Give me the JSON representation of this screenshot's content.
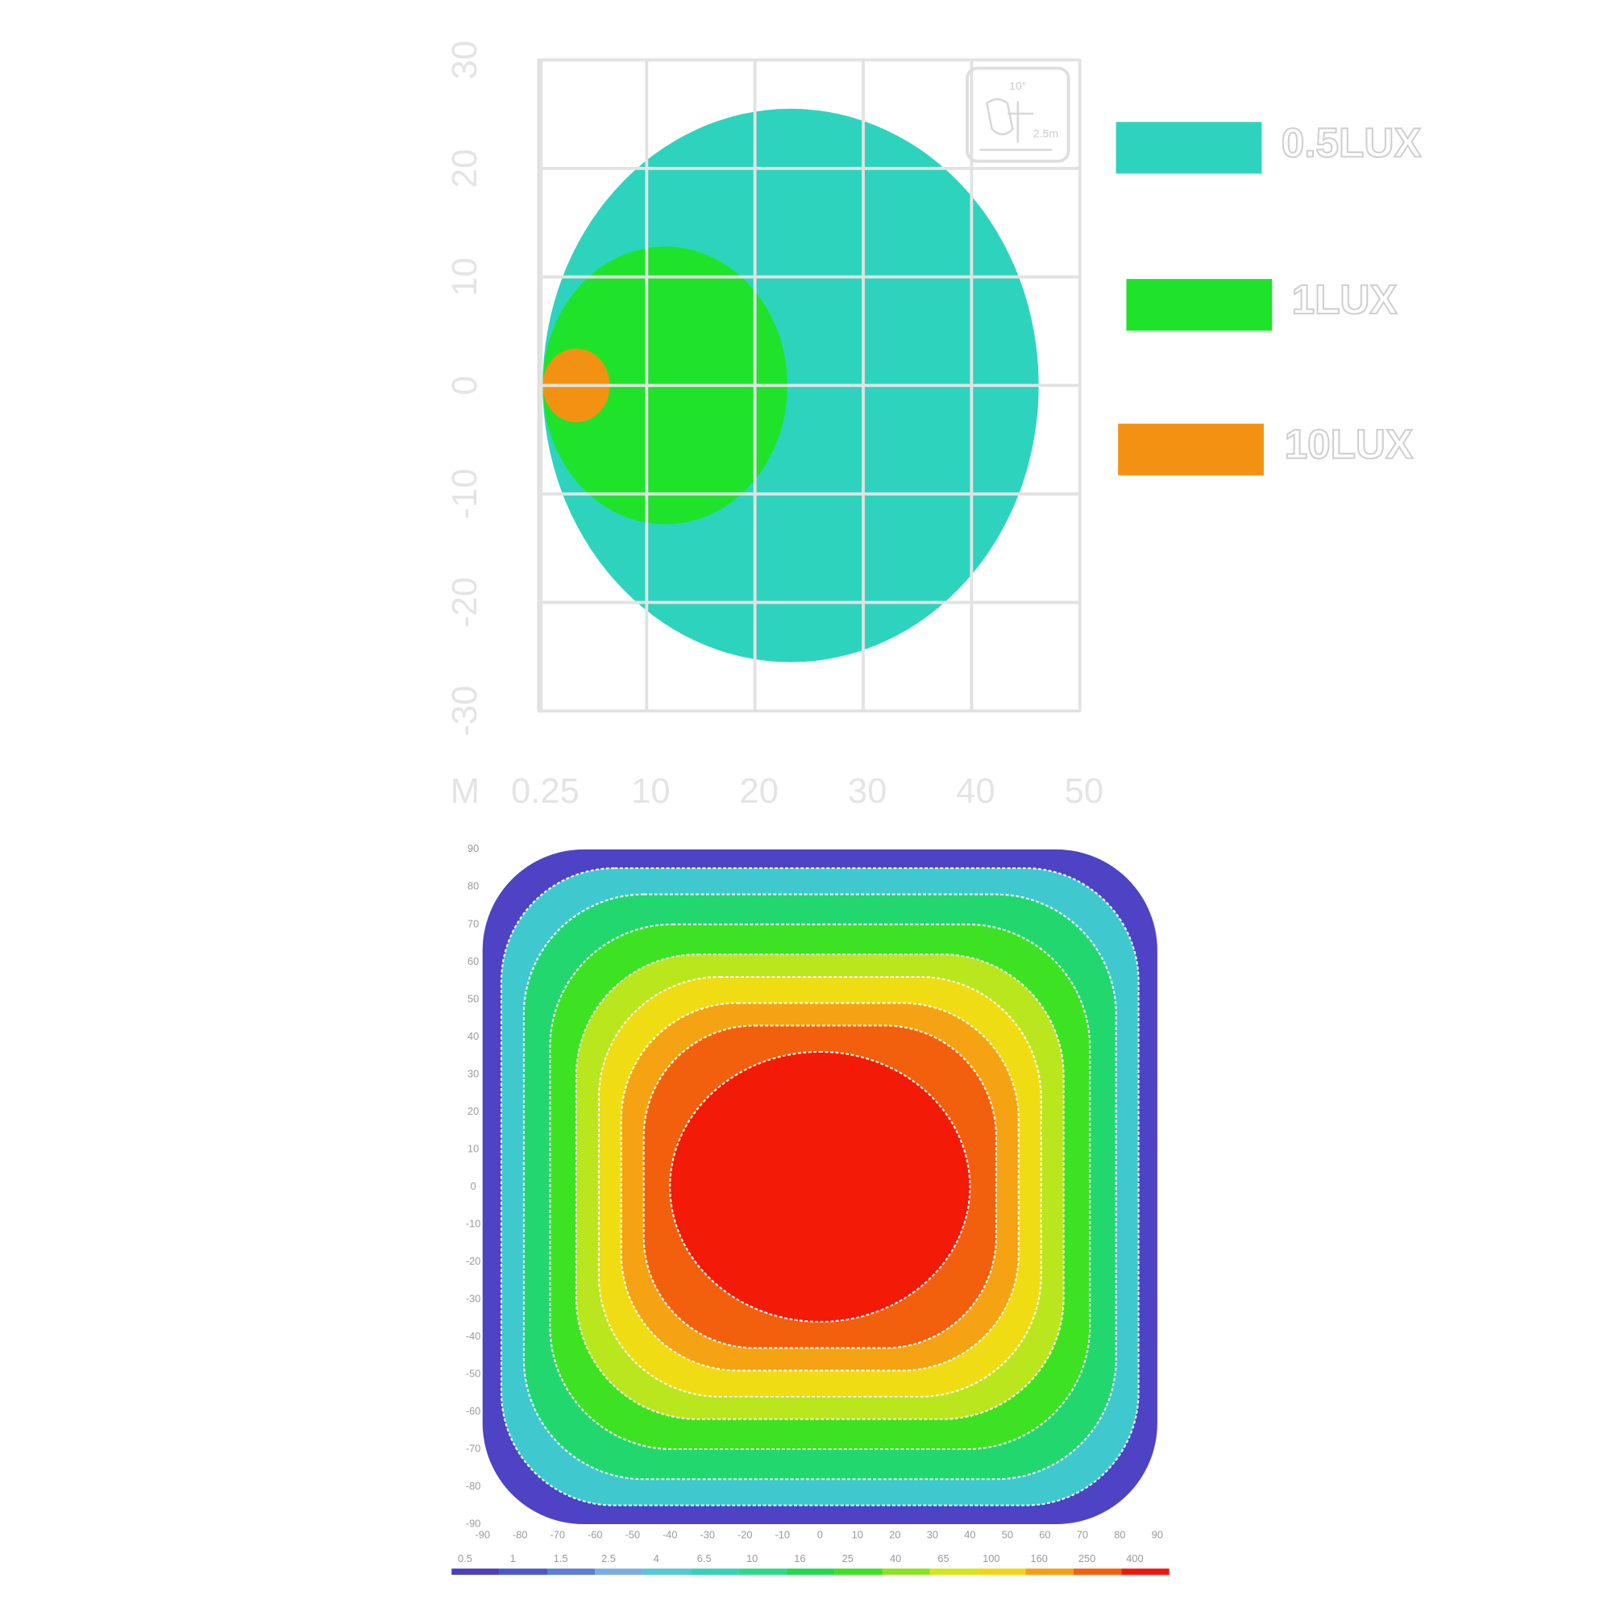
{
  "charts": [
    {
      "type": "illuminance",
      "xlim": [
        0,
        50
      ],
      "ylim": [
        -30,
        30
      ],
      "x_unit": "M",
      "xticks": [
        0.25,
        10,
        20,
        30,
        40,
        50
      ],
      "yticks": [
        30,
        20,
        10,
        0,
        -10,
        -20,
        -30
      ],
      "grid": true,
      "icon_labels": [
        "10°",
        "2.5m"
      ],
      "series": [
        {
          "name": "0.5LUX",
          "color": "#2ed3be",
          "center": [
            23.3,
            0
          ],
          "radii": [
            22.9,
            25.5
          ]
        },
        {
          "name": "1LUX",
          "color": "#1ee32a",
          "center": [
            11.7,
            0
          ],
          "radii": [
            11.3,
            12.8
          ]
        },
        {
          "name": "10LUX",
          "color": "#f39212",
          "center": [
            3.5,
            0
          ],
          "radii": [
            3.1,
            3.4
          ]
        }
      ]
    },
    {
      "type": "heatmap",
      "xlim": [
        -90,
        90
      ],
      "ylim": [
        -90,
        90
      ],
      "xticks": [
        -90,
        -80,
        -70,
        -60,
        -50,
        -40,
        -30,
        -20,
        -10,
        0,
        10,
        20,
        30,
        40,
        50,
        60,
        70,
        80,
        90
      ],
      "yticks": [
        90,
        80,
        70,
        60,
        50,
        40,
        30,
        20,
        10,
        0,
        -10,
        -20,
        -30,
        -40,
        -50,
        -60,
        -70,
        -80,
        -90
      ],
      "contours": [
        {
          "color": "#4d43c4",
          "half_size": [
            90,
            90
          ]
        },
        {
          "color": "#3fc9cf",
          "half_size": [
            85,
            85
          ]
        },
        {
          "color": "#22d86e",
          "half_size": [
            79,
            78
          ]
        },
        {
          "color": "#3de322",
          "half_size": [
            72,
            70
          ]
        },
        {
          "color": "#b9e61c",
          "half_size": [
            65,
            62
          ]
        },
        {
          "color": "#f0dc12",
          "half_size": [
            59,
            56
          ]
        },
        {
          "color": "#f5a312",
          "half_size": [
            53,
            49
          ]
        },
        {
          "color": "#f2600e",
          "half_size": [
            47,
            43
          ]
        },
        {
          "color": "#f31a08",
          "half_size": [
            40,
            36
          ]
        }
      ],
      "colorbar": {
        "levels": [
          0.5,
          1,
          1.5,
          2.5,
          4,
          6.5,
          10,
          16,
          25,
          40,
          65,
          100,
          160,
          250,
          400
        ],
        "colors": [
          "#4a3fb8",
          "#4b58c8",
          "#5b7fd2",
          "#7aaee0",
          "#52c8d2",
          "#35d0b8",
          "#2cd88a",
          "#22d850",
          "#40de26",
          "#8ce21e",
          "#d2e61a",
          "#f2d414",
          "#f4a012",
          "#f2600e",
          "#f0160a"
        ]
      }
    }
  ]
}
